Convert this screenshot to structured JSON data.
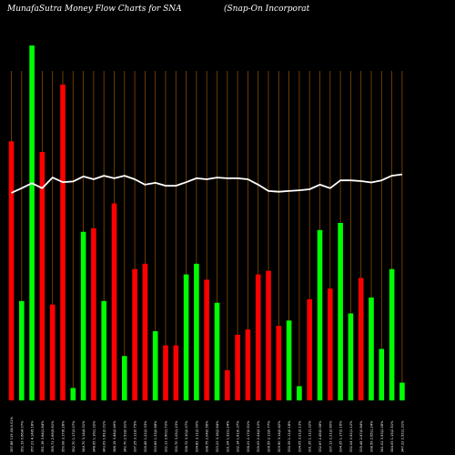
{
  "chart_data": {
    "type": "bar",
    "title_left": "MunafaSutra  Money Flow  Charts for SNA",
    "title_right": "(Snap-On  Incorporat",
    "bar_up_color": "#00ff00",
    "bar_down_color": "#ff0000",
    "line_color": "#ffffff",
    "vgrid_color": "#8a4a00",
    "background": "#000000",
    "ylim": [
      0,
      100
    ],
    "categories": [
      "357.88 119.00(0.01%",
      "352.19 0.66(4.07%",
      "357.21 4.14(6.18%",
      "351.18 3.64(1.84%",
      "355.71 2.69(5.61%",
      "350.08 3.17(6.28%",
      "352.70 1.17(3.07%",
      "344.70 3.14(4.31%",
      "348.95 1.16(1.32%",
      "343.09 1.81(2.01%",
      "346.15 3.44(2.49%",
      "342.70 2.53(0.91%",
      "337.25 3.11(0.75%",
      "335.45 1.22(2.33%",
      "333.69 1.33(0.68%",
      "332.11 2.60(1.72%",
      "330.70 3.25(1.23%",
      "336.72 3.30(2.07%",
      "334.82 3.11(2.00%",
      "338.75 2.04(0.56%",
      "333.21 3.18(2.64%",
      "331.04 1.92(1.24%",
      "332.14 1.61(0.37%",
      "336.21 2.17(0.51%",
      "335.09 2.24(2.12%",
      "328.55 2.13(0.77%",
      "329.90 3.14(0.42%",
      "330.35 1.11(0.18%",
      "334.05 3.21(2.13%",
      "331.35 1.11(1.32%",
      "332.67 2.45(0.08%",
      "337.13 2.21(2.60%",
      "334.35 1.17(2.16%",
      "332.04 2.52(1.12%",
      "335.44 2.47(0.84%",
      "338.59 2.65(1.24%",
      "341.02 3.53(2.08%",
      "344.05 1.15(2.51%",
      "347.22 2.52(1.31%"
    ],
    "bars": [
      {
        "dir": "down",
        "value": 73
      },
      {
        "dir": "up",
        "value": 28
      },
      {
        "dir": "up",
        "value": 100
      },
      {
        "dir": "down",
        "value": 70
      },
      {
        "dir": "down",
        "value": 27
      },
      {
        "dir": "down",
        "value": 89
      },
      {
        "dir": "up",
        "value": 3.5
      },
      {
        "dir": "up",
        "value": 47.5
      },
      {
        "dir": "down",
        "value": 48.5
      },
      {
        "dir": "up",
        "value": 28
      },
      {
        "dir": "down",
        "value": 55.5
      },
      {
        "dir": "up",
        "value": 12.5
      },
      {
        "dir": "down",
        "value": 37
      },
      {
        "dir": "down",
        "value": 38.5
      },
      {
        "dir": "up",
        "value": 19.5
      },
      {
        "dir": "down",
        "value": 15.5
      },
      {
        "dir": "down",
        "value": 15.5
      },
      {
        "dir": "up",
        "value": 35.5
      },
      {
        "dir": "up",
        "value": 38.5
      },
      {
        "dir": "down",
        "value": 34
      },
      {
        "dir": "up",
        "value": 27.5
      },
      {
        "dir": "down",
        "value": 8.5
      },
      {
        "dir": "down",
        "value": 18.5
      },
      {
        "dir": "down",
        "value": 20
      },
      {
        "dir": "down",
        "value": 35.5
      },
      {
        "dir": "down",
        "value": 36.5
      },
      {
        "dir": "down",
        "value": 21
      },
      {
        "dir": "up",
        "value": 22.5
      },
      {
        "dir": "up",
        "value": 4
      },
      {
        "dir": "down",
        "value": 28.5
      },
      {
        "dir": "up",
        "value": 48
      },
      {
        "dir": "down",
        "value": 31.5
      },
      {
        "dir": "up",
        "value": 50
      },
      {
        "dir": "up",
        "value": 24.5
      },
      {
        "dir": "down",
        "value": 34.5
      },
      {
        "dir": "up",
        "value": 29
      },
      {
        "dir": "up",
        "value": 14.5
      },
      {
        "dir": "up",
        "value": 37
      },
      {
        "dir": "up",
        "value": 5
      }
    ],
    "line_values": [
      58.5,
      59.8,
      61.2,
      59.8,
      62.8,
      61.5,
      61.7,
      63.1,
      62.3,
      63.3,
      62.6,
      63.3,
      62.3,
      60.8,
      61.3,
      60.5,
      60.5,
      61.5,
      62.6,
      62.3,
      62.8,
      62.6,
      62.6,
      62.3,
      60.8,
      59.0,
      58.8,
      59.0,
      59.2,
      59.5,
      60.8,
      59.8,
      62.0,
      62.0,
      61.8,
      61.4,
      62.0,
      63.3,
      63.7
    ]
  }
}
